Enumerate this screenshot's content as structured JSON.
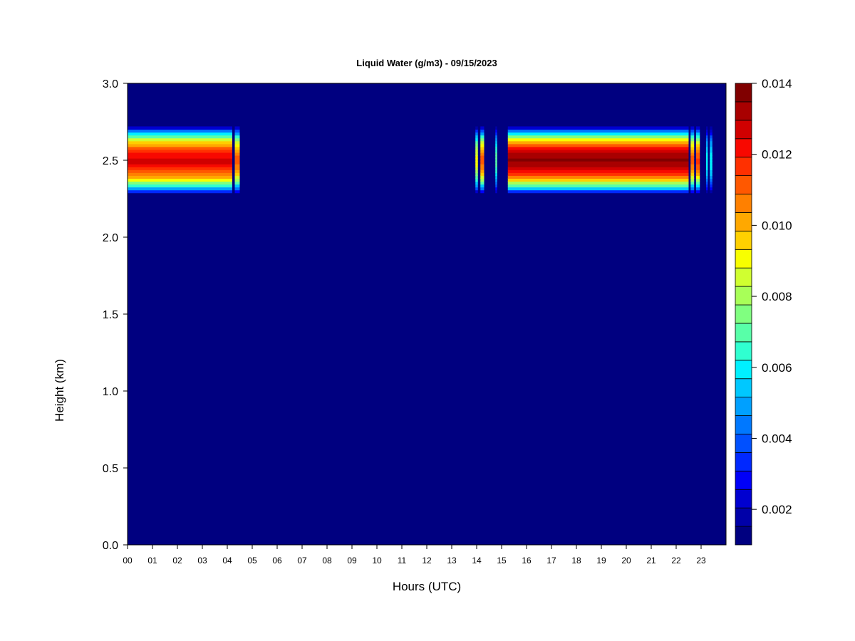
{
  "chart_data": {
    "type": "heatmap",
    "title": "Liquid Water (g/m3) - 09/15/2023",
    "xlabel": "Hours (UTC)",
    "ylabel": "Height (km)",
    "xlim": [
      0,
      24
    ],
    "ylim": [
      0,
      3.0
    ],
    "x_tick_values": [
      0,
      1,
      2,
      3,
      4,
      5,
      6,
      7,
      8,
      9,
      10,
      11,
      12,
      13,
      14,
      15,
      16,
      17,
      18,
      19,
      20,
      21,
      22,
      23
    ],
    "x_tick_labels": [
      "00",
      "01",
      "02",
      "03",
      "04",
      "05",
      "06",
      "07",
      "08",
      "09",
      "10",
      "11",
      "12",
      "13",
      "14",
      "15",
      "16",
      "17",
      "18",
      "19",
      "20",
      "21",
      "22",
      "23"
    ],
    "y_tick_values": [
      0.0,
      0.5,
      1.0,
      1.5,
      2.0,
      2.5,
      3.0
    ],
    "y_tick_labels": [
      "0.0",
      "0.5",
      "1.0",
      "1.5",
      "2.0",
      "2.5",
      "3.0"
    ],
    "colorbar": {
      "min": 0.001,
      "max": 0.014,
      "tick_values": [
        0.002,
        0.004,
        0.006,
        0.008,
        0.01,
        0.012,
        0.014
      ],
      "tick_labels": [
        "0.002",
        "0.004",
        "0.006",
        "0.008",
        "0.010",
        "0.012",
        "0.014"
      ],
      "colors": [
        "#000080",
        "#0000a8",
        "#0000d0",
        "#0000f8",
        "#0028ff",
        "#0050ff",
        "#0078ff",
        "#00a0ff",
        "#00c8ff",
        "#00f0ff",
        "#30ffd0",
        "#58ffa8",
        "#80ff80",
        "#a8ff58",
        "#d0ff30",
        "#f8ff00",
        "#ffd000",
        "#ffa800",
        "#ff8000",
        "#ff5800",
        "#ff3000",
        "#f80800",
        "#d00000",
        "#a80000",
        "#800000"
      ]
    },
    "background_value": 0.001,
    "cloud_layer": {
      "center_height_km": 2.5,
      "base_km": 2.27,
      "top_km": 2.72,
      "segments": [
        {
          "start_hour": 0.0,
          "end_hour": 4.2,
          "peak_value": 0.0125
        },
        {
          "start_hour": 4.3,
          "end_hour": 4.5,
          "peak_value": 0.011
        },
        {
          "start_hour": 13.95,
          "end_hour": 14.05,
          "peak_value": 0.009
        },
        {
          "start_hour": 14.15,
          "end_hour": 14.3,
          "peak_value": 0.011
        },
        {
          "start_hour": 14.75,
          "end_hour": 14.82,
          "peak_value": 0.007
        },
        {
          "start_hour": 15.25,
          "end_hour": 22.5,
          "peak_value": 0.0135
        },
        {
          "start_hour": 22.58,
          "end_hour": 22.72,
          "peak_value": 0.011
        },
        {
          "start_hour": 22.8,
          "end_hour": 22.95,
          "peak_value": 0.0115
        },
        {
          "start_hour": 23.2,
          "end_hour": 23.27,
          "peak_value": 0.006
        },
        {
          "start_hour": 23.35,
          "end_hour": 23.45,
          "peak_value": 0.006
        }
      ]
    }
  }
}
